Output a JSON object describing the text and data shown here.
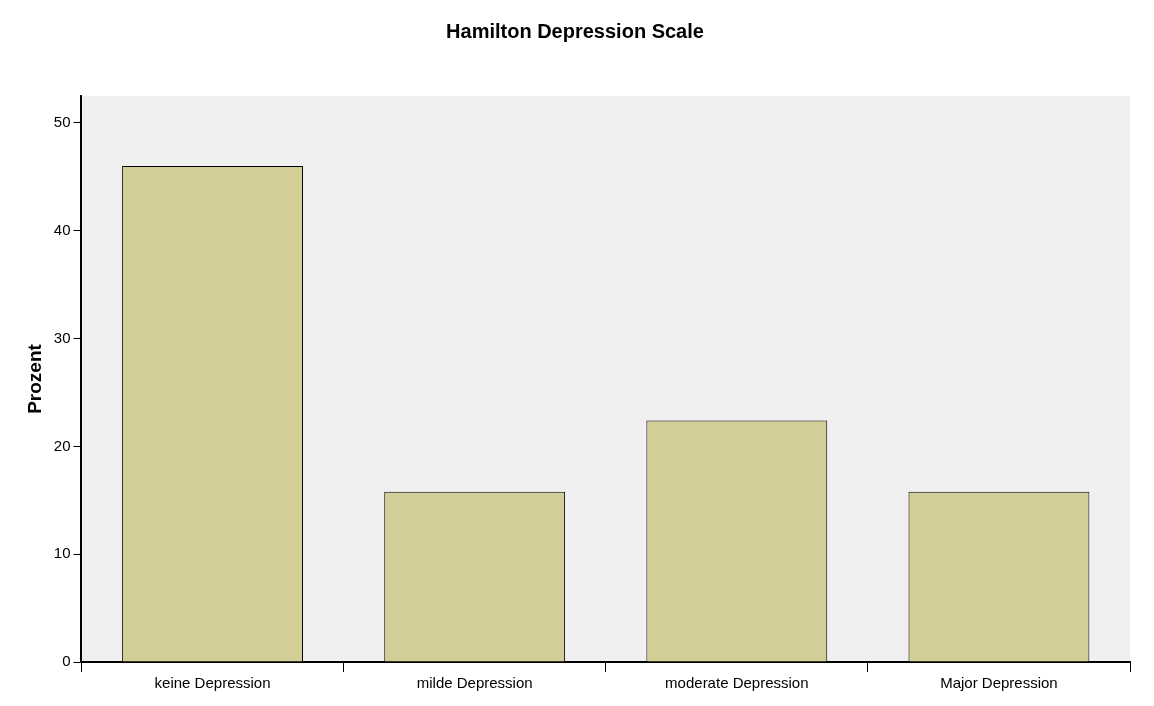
{
  "chart_data": {
    "type": "bar",
    "title": "Hamilton Depression Scale",
    "ylabel": "Prozent",
    "categories": [
      "keine Depression",
      "milde Depression",
      "moderate Depression",
      "Major Depression"
    ],
    "values": [
      46.0,
      15.8,
      22.4,
      15.8
    ],
    "color": "#d3ce97",
    "ylim": [
      0,
      52.5
    ],
    "yticks": [
      0,
      10,
      20,
      30,
      40,
      50
    ],
    "grid": false,
    "legend": false
  }
}
